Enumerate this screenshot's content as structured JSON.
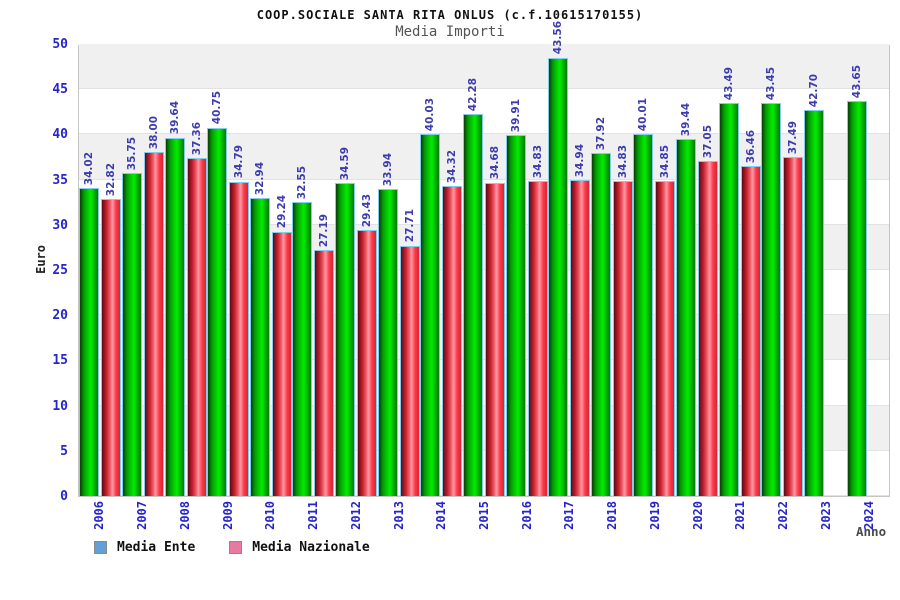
{
  "title": "COOP.SOCIALE SANTA RITA ONLUS (c.f.10615170155)",
  "subtitle": "Media Importi",
  "y_axis": {
    "label": "Euro",
    "ticks": [
      0,
      5,
      10,
      15,
      20,
      25,
      30,
      35,
      40,
      45,
      50
    ]
  },
  "x_axis": {
    "label": "Anno"
  },
  "legend": {
    "items": [
      {
        "label": "Media Ente",
        "swatch_color": "#64a0d8"
      },
      {
        "label": "Media Nazionale",
        "swatch_color": "#e87a9f"
      }
    ]
  },
  "chart_data": {
    "type": "bar",
    "title": "COOP.SOCIALE SANTA RITA ONLUS (c.f.10615170155)",
    "subtitle": "Media Importi",
    "xlabel": "Anno",
    "ylabel": "Euro",
    "ylim": [
      0,
      50
    ],
    "grid": "horizontal-bands-alternating",
    "legend_position": "bottom-left",
    "value_labels": "rotated-90-above-bars, two decimals",
    "categories": [
      "2006",
      "2007",
      "2008",
      "2009",
      "2010",
      "2011",
      "2012",
      "2013",
      "2014",
      "2015",
      "2016",
      "2017",
      "2018",
      "2019",
      "2020",
      "2021",
      "2022",
      "2023",
      "2024"
    ],
    "series": [
      {
        "name": "Media Ente",
        "bar_style": "green",
        "values": [
          34.02,
          35.75,
          39.64,
          40.75,
          32.94,
          32.55,
          34.59,
          33.94,
          40.03,
          42.28,
          39.91,
          43.56,
          37.92,
          40.01,
          39.44,
          43.49,
          43.45,
          42.7,
          43.65
        ]
      },
      {
        "name": "Media Nazionale",
        "bar_style": "red",
        "values": [
          32.82,
          38.0,
          37.36,
          34.79,
          29.24,
          27.19,
          29.43,
          27.71,
          34.32,
          34.68,
          34.83,
          34.94,
          34.83,
          34.85,
          37.05,
          36.46,
          37.49,
          null,
          null
        ]
      }
    ],
    "drawn_height_overrides": [
      {
        "series": "Media Ente",
        "category": "2017",
        "drawn_value": 48.5
      }
    ]
  },
  "colors": {
    "bar_green_bright": "#00ee00",
    "bar_green_dark": "#063f06",
    "bar_red_bright": "#fb3b4a",
    "bar_red_dark": "#5e0a14",
    "bar_red_highlight": "#ff99a2",
    "bar_outline": "#85ccea",
    "value_label": "#3c3cae",
    "axis_tick_label": "#2525cd",
    "band_gray": "#f0f0f0",
    "plot_border": "#c6c6c6",
    "subtitle_gray": "#555555"
  }
}
